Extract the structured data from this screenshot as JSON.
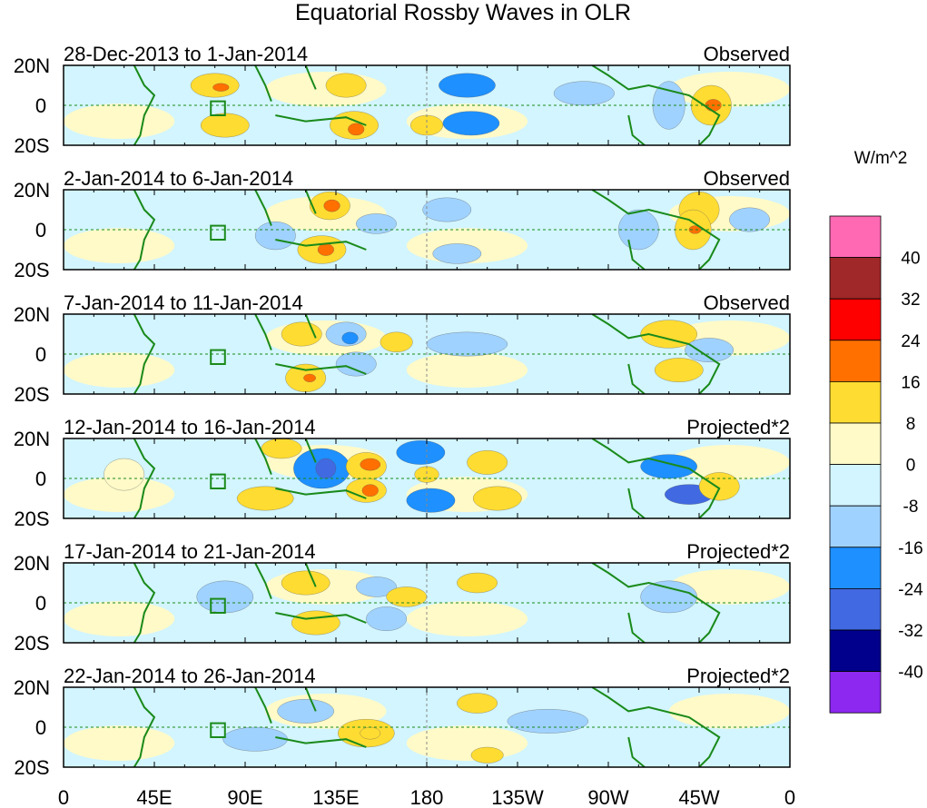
{
  "chart_data": {
    "type": "heatmap",
    "title": "Equatorial Rossby Waves in OLR",
    "units_label": "W/m^2",
    "x_ticks": [
      "0",
      "45E",
      "90E",
      "135E",
      "180",
      "135W",
      "90W",
      "45W",
      "0"
    ],
    "x_range_deg": [
      0,
      360
    ],
    "y_ticks": [
      "20N",
      "0",
      "20S"
    ],
    "y_range_deg": [
      -20,
      20
    ],
    "colorbar": {
      "levels": [
        "40",
        "32",
        "24",
        "16",
        "8",
        "0",
        "-8",
        "-16",
        "-24",
        "-32",
        "-40"
      ],
      "colors": [
        "#ff69b4",
        "#a02828",
        "#ff0000",
        "#ff7000",
        "#ffdc32",
        "#fffac8",
        "#d2f5ff",
        "#a0d2ff",
        "#1e90ff",
        "#4169e1",
        "#00008c",
        "#8c28f0"
      ]
    },
    "panels": [
      {
        "date_range": "28-Dec-2013 to 1-Jan-2014",
        "type": "Observed",
        "blobs": [
          [
            75,
            10,
            12,
            6,
            10
          ],
          [
            78,
            9,
            4,
            2,
            20
          ],
          [
            80,
            -10,
            12,
            6,
            10
          ],
          [
            140,
            10,
            10,
            6,
            12
          ],
          [
            144,
            -10,
            12,
            7,
            12
          ],
          [
            145,
            -12,
            4,
            3,
            20
          ],
          [
            200,
            10,
            14,
            6,
            -16
          ],
          [
            202,
            -9,
            14,
            6,
            -16
          ],
          [
            180,
            -10,
            8,
            5,
            10
          ],
          [
            258,
            6,
            15,
            6,
            -10
          ],
          [
            300,
            0,
            8,
            12,
            -10
          ],
          [
            321,
            0,
            10,
            10,
            12
          ],
          [
            322,
            0,
            4,
            3,
            20
          ]
        ]
      },
      {
        "date_range": "2-Jan-2014 to 6-Jan-2014",
        "type": "Observed",
        "blobs": [
          [
            132,
            12,
            10,
            7,
            14
          ],
          [
            133,
            12,
            4,
            3,
            20
          ],
          [
            128,
            -10,
            12,
            7,
            12
          ],
          [
            130,
            -10,
            4,
            3,
            20
          ],
          [
            105,
            -3,
            10,
            7,
            -10
          ],
          [
            155,
            3,
            10,
            5,
            -10
          ],
          [
            190,
            10,
            12,
            6,
            -10
          ],
          [
            195,
            -12,
            12,
            5,
            -10
          ],
          [
            315,
            10,
            10,
            9,
            12
          ],
          [
            312,
            0,
            9,
            10,
            12
          ],
          [
            313,
            0,
            3,
            2,
            20
          ],
          [
            285,
            0,
            10,
            10,
            -10
          ],
          [
            340,
            5,
            10,
            6,
            -10
          ]
        ]
      },
      {
        "date_range": "7-Jan-2014 to 11-Jan-2014",
        "type": "Observed",
        "blobs": [
          [
            118,
            10,
            10,
            6,
            12
          ],
          [
            120,
            -12,
            10,
            7,
            12
          ],
          [
            122,
            -12,
            3,
            2,
            18
          ],
          [
            140,
            10,
            10,
            6,
            -10
          ],
          [
            142,
            8,
            4,
            3,
            -18
          ],
          [
            145,
            -5,
            10,
            6,
            -10
          ],
          [
            165,
            6,
            8,
            5,
            10
          ],
          [
            200,
            5,
            20,
            6,
            -8
          ],
          [
            300,
            10,
            14,
            7,
            12
          ],
          [
            305,
            -8,
            12,
            6,
            10
          ],
          [
            320,
            2,
            12,
            6,
            -10
          ]
        ]
      },
      {
        "date_range": "12-Jan-2014 to 16-Jan-2014",
        "type": "Projected*2",
        "blobs": [
          [
            108,
            15,
            10,
            5,
            10
          ],
          [
            128,
            5,
            14,
            10,
            -16
          ],
          [
            130,
            5,
            5,
            5,
            -24
          ],
          [
            150,
            6,
            10,
            7,
            14
          ],
          [
            152,
            7,
            5,
            3,
            20
          ],
          [
            150,
            -6,
            10,
            6,
            14
          ],
          [
            152,
            -6,
            4,
            3,
            20
          ],
          [
            180,
            2,
            6,
            4,
            10
          ],
          [
            177,
            13,
            12,
            6,
            -16
          ],
          [
            182,
            -11,
            12,
            6,
            -16
          ],
          [
            210,
            8,
            10,
            6,
            10
          ],
          [
            215,
            -10,
            12,
            6,
            10
          ],
          [
            100,
            -10,
            14,
            6,
            10
          ],
          [
            30,
            2,
            10,
            8,
            8
          ],
          [
            300,
            6,
            14,
            6,
            -16
          ],
          [
            310,
            -8,
            12,
            5,
            -24
          ],
          [
            325,
            -4,
            10,
            7,
            12
          ]
        ]
      },
      {
        "date_range": "17-Jan-2014 to 21-Jan-2014",
        "type": "Projected*2",
        "blobs": [
          [
            80,
            3,
            14,
            8,
            -10
          ],
          [
            120,
            10,
            12,
            6,
            10
          ],
          [
            125,
            -10,
            12,
            6,
            10
          ],
          [
            155,
            8,
            10,
            5,
            -10
          ],
          [
            160,
            -8,
            10,
            6,
            -10
          ],
          [
            170,
            3,
            10,
            5,
            10
          ],
          [
            205,
            10,
            10,
            5,
            10
          ],
          [
            300,
            3,
            14,
            8,
            -10
          ]
        ]
      },
      {
        "date_range": "22-Jan-2014 to 26-Jan-2014",
        "type": "Projected*2",
        "blobs": [
          [
            150,
            -3,
            14,
            7,
            10
          ],
          [
            152,
            -3,
            5,
            3,
            16
          ],
          [
            205,
            12,
            10,
            5,
            10
          ],
          [
            210,
            -14,
            8,
            4,
            10
          ],
          [
            120,
            8,
            14,
            6,
            -8
          ],
          [
            95,
            -6,
            16,
            6,
            -8
          ],
          [
            240,
            3,
            20,
            6,
            -8
          ]
        ]
      }
    ]
  }
}
